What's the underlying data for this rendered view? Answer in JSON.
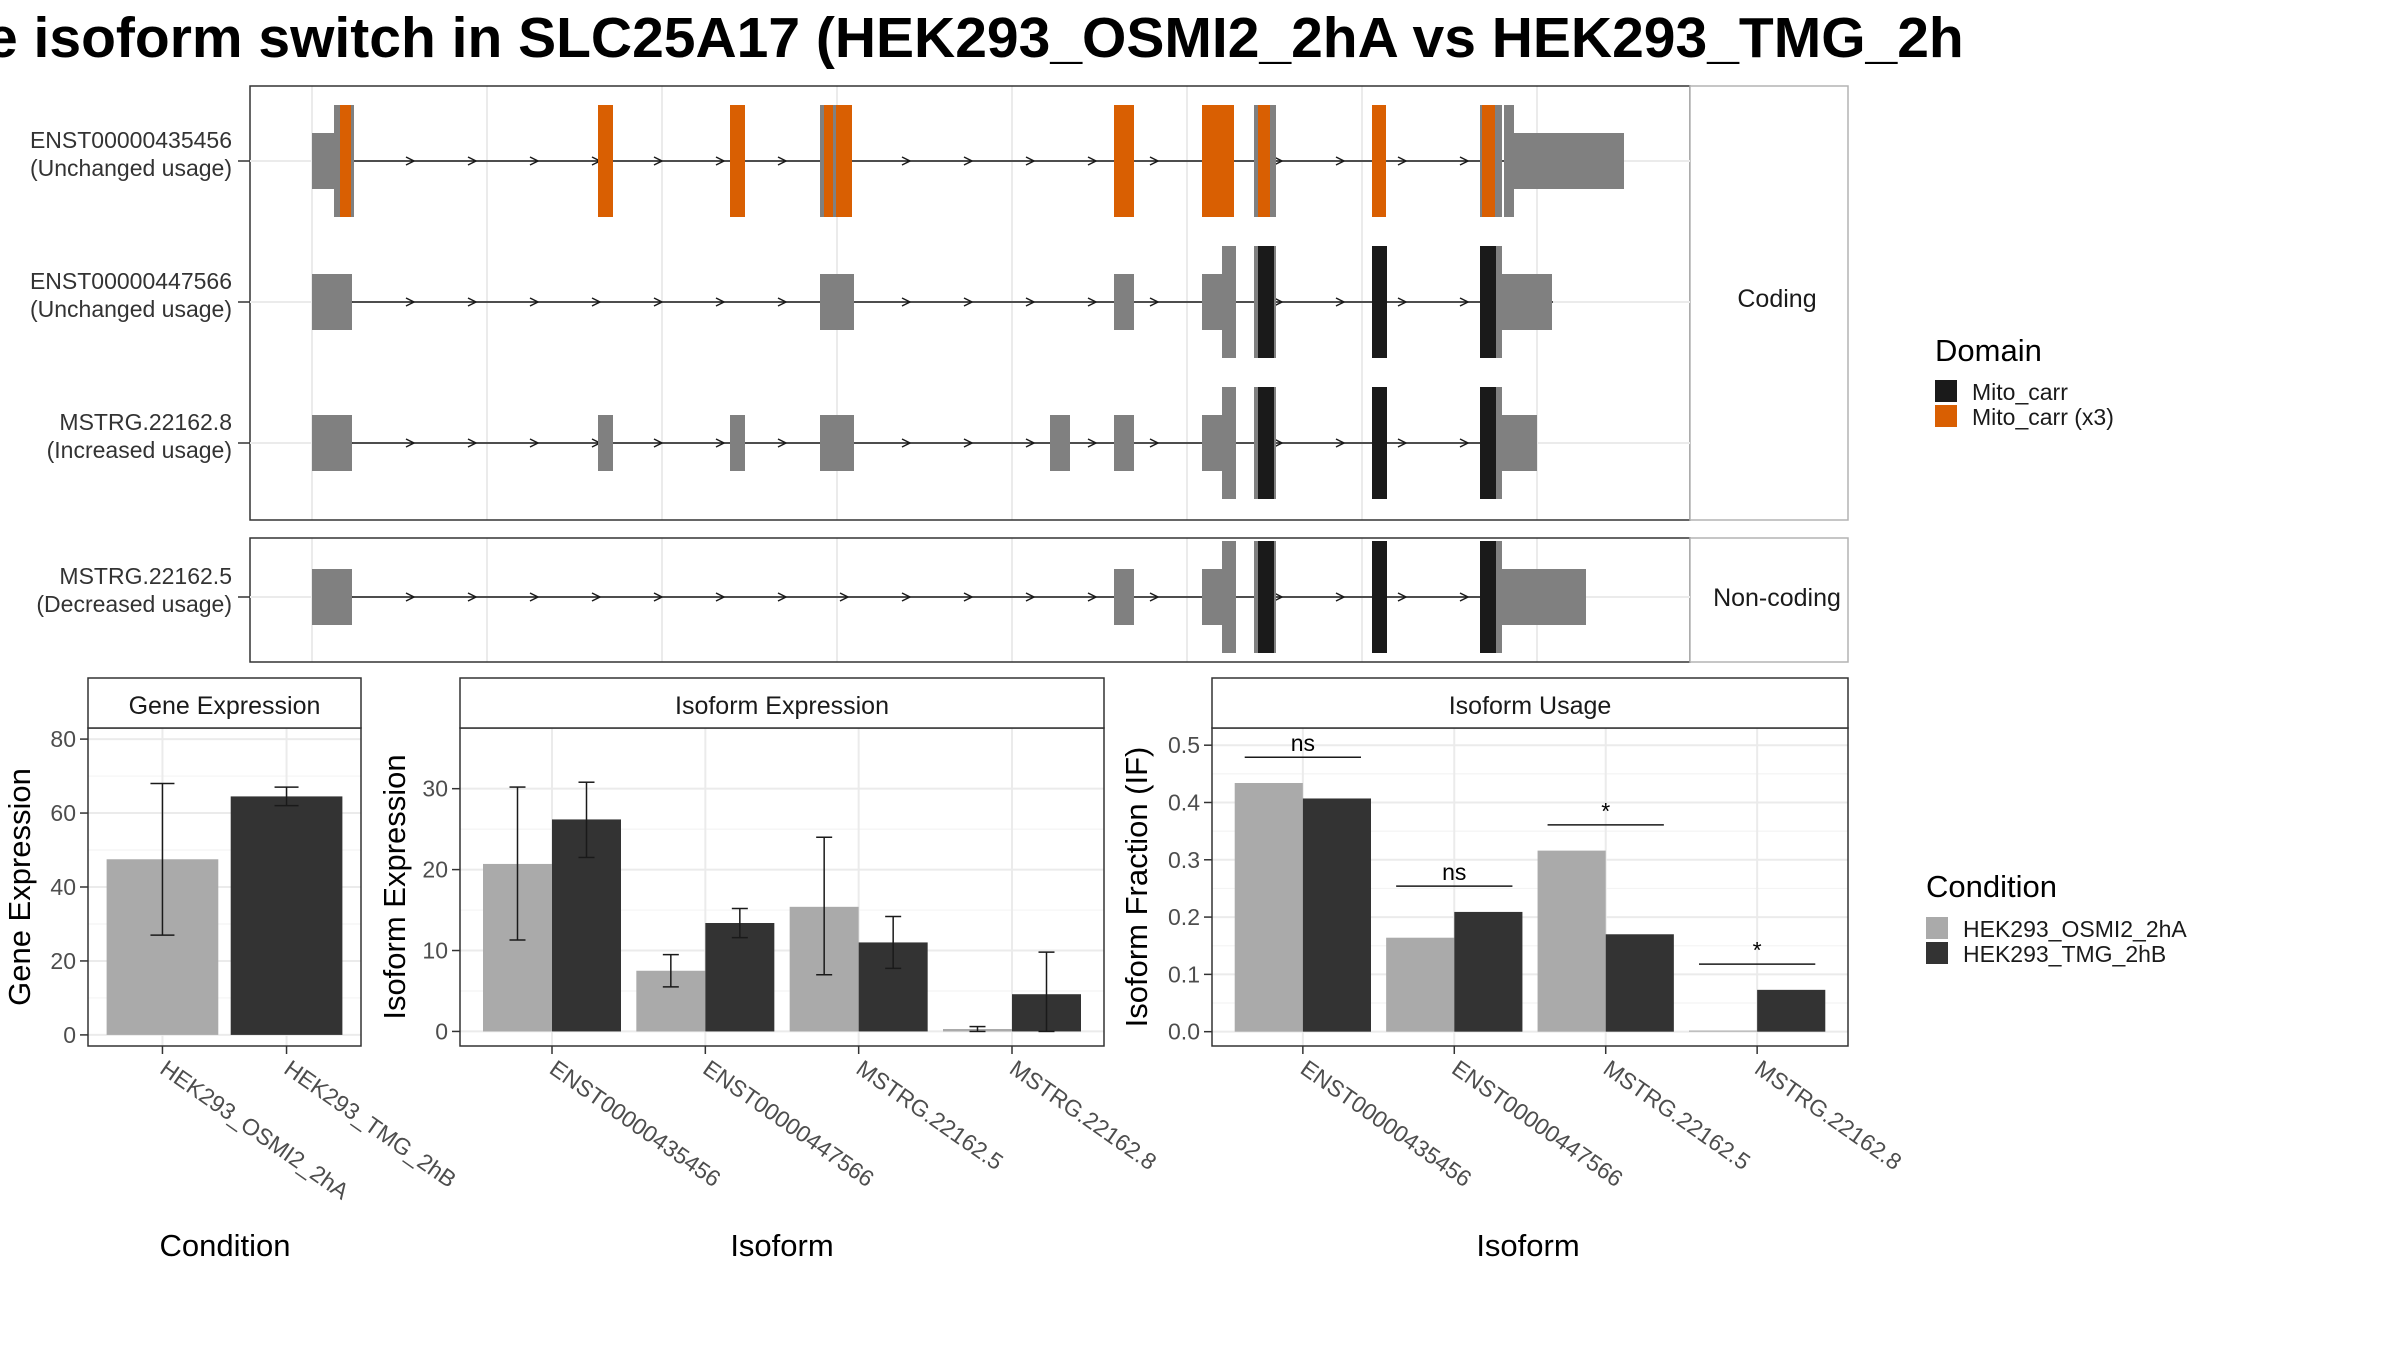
{
  "title": "e isoform switch in SLC25A17 (HEK293_OSMI2_2hA vs HEK293_TMG_2h",
  "colors": {
    "exon": "#808080",
    "domain_mito_carr": "#1a1a1a",
    "domain_mito_carr_x3": "#d95f02",
    "cond_a": "#aaaaaa",
    "cond_b": "#333333",
    "panel_border": "#333333",
    "grid": "#ebebeb",
    "strip_bg": "#ffffff"
  },
  "structure": {
    "coding_label": "Coding",
    "noncoding_label": "Non-coding",
    "transcripts": [
      {
        "id": "ENST00000435456",
        "usage": "(Unchanged usage)",
        "group": "coding"
      },
      {
        "id": "ENST00000447566",
        "usage": "(Unchanged usage)",
        "group": "coding"
      },
      {
        "id": "MSTRG.22162.8",
        "usage": "(Increased usage)",
        "group": "coding"
      },
      {
        "id": "MSTRG.22162.5",
        "usage": "(Decreased usage)",
        "group": "noncoding"
      }
    ],
    "legend": {
      "title": "Domain",
      "items": [
        "Mito_carr",
        "Mito_carr (x3)"
      ]
    }
  },
  "chart_data": [
    {
      "type": "bar",
      "title": "Gene Expression",
      "xlabel": "Condition",
      "ylabel": "Gene Expression",
      "categories": [
        "HEK293_OSMI2_2hA",
        "HEK293_TMG_2hB"
      ],
      "values": [
        47.5,
        64.5
      ],
      "err_low": [
        27,
        62
      ],
      "err_high": [
        68,
        67
      ],
      "ylim": [
        -3,
        83
      ],
      "yticks": [
        0,
        20,
        40,
        60,
        80
      ]
    },
    {
      "type": "bar",
      "title": "Isoform Expression",
      "xlabel": "Isoform",
      "ylabel": "Isoform Expression",
      "categories": [
        "ENST00000435456",
        "ENST00000447566",
        "MSTRG.22162.5",
        "MSTRG.22162.8"
      ],
      "series": [
        {
          "name": "HEK293_OSMI2_2hA",
          "values": [
            20.7,
            7.5,
            15.4,
            0.3
          ],
          "err_low": [
            11.3,
            5.5,
            7,
            0
          ],
          "err_high": [
            30.2,
            9.5,
            24,
            0.6
          ]
        },
        {
          "name": "HEK293_TMG_2hB",
          "values": [
            26.2,
            13.4,
            11.0,
            4.6
          ],
          "err_low": [
            21.5,
            11.6,
            7.8,
            0
          ],
          "err_high": [
            30.8,
            15.2,
            14.2,
            9.8
          ]
        }
      ],
      "ylim": [
        -1.8,
        37.5
      ],
      "yticks": [
        0,
        10,
        20,
        30
      ]
    },
    {
      "type": "bar",
      "title": "Isoform Usage",
      "xlabel": "Isoform",
      "ylabel": "Isoform Fraction (IF)",
      "categories": [
        "ENST00000435456",
        "ENST00000447566",
        "MSTRG.22162.5",
        "MSTRG.22162.8"
      ],
      "series": [
        {
          "name": "HEK293_OSMI2_2hA",
          "values": [
            0.434,
            0.164,
            0.316,
            0.002
          ]
        },
        {
          "name": "HEK293_TMG_2hB",
          "values": [
            0.407,
            0.209,
            0.17,
            0.073
          ]
        }
      ],
      "significance": [
        "ns",
        "ns",
        "*",
        "*"
      ],
      "ylim": [
        -0.025,
        0.53
      ],
      "yticks": [
        0.0,
        0.1,
        0.2,
        0.3,
        0.4,
        0.5
      ],
      "ytick_labels": [
        "0.0",
        "0.1",
        "0.2",
        "0.3",
        "0.4",
        "0.5"
      ]
    }
  ],
  "condition_legend": {
    "title": "Condition",
    "items": [
      "HEK293_OSMI2_2hA",
      "HEK293_TMG_2hB"
    ]
  }
}
